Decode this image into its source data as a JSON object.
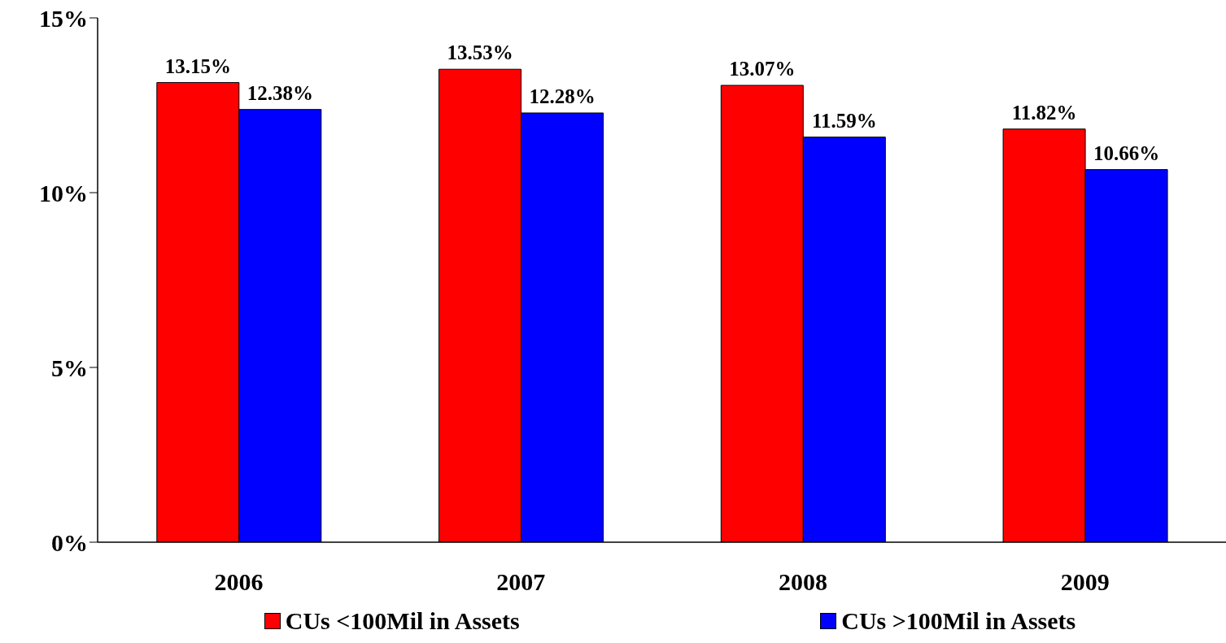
{
  "chart_data": {
    "type": "bar",
    "categories": [
      "2006",
      "2007",
      "2008",
      "2009"
    ],
    "series": [
      {
        "name": "CUs <100Mil in Assets",
        "color": "#ff0000",
        "values": [
          13.15,
          13.53,
          13.07,
          11.82
        ],
        "value_labels": [
          "13.15%",
          "13.53%",
          "13.07%",
          "11.82%"
        ]
      },
      {
        "name": "CUs >100Mil in Assets",
        "color": "#0000ff",
        "values": [
          12.38,
          12.28,
          11.59,
          10.66
        ],
        "value_labels": [
          "12.38%",
          "12.28%",
          "11.59%",
          "10.66%"
        ]
      }
    ],
    "ylim": [
      0,
      15
    ],
    "yticks": [
      {
        "value": 0,
        "label": "0%"
      },
      {
        "value": 5,
        "label": "5%"
      },
      {
        "value": 10,
        "label": "10%"
      },
      {
        "value": 15,
        "label": "15%"
      }
    ],
    "grid": false,
    "legend": "bottom"
  }
}
